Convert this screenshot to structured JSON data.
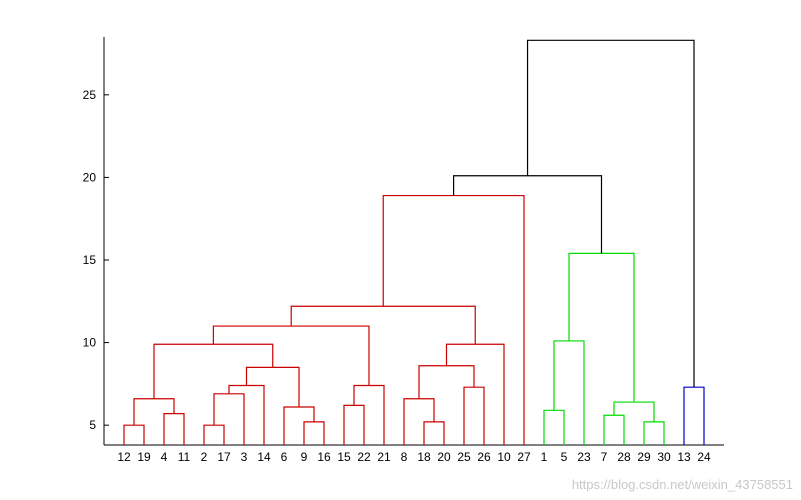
{
  "chart_data": {
    "type": "dendrogram",
    "leaf_order": [
      "12",
      "19",
      "4",
      "11",
      "2",
      "17",
      "3",
      "14",
      "6",
      "9",
      "16",
      "15",
      "22",
      "21",
      "8",
      "18",
      "20",
      "25",
      "26",
      "10",
      "27",
      "1",
      "5",
      "23",
      "7",
      "28",
      "29",
      "30",
      "13",
      "24"
    ],
    "ylim": [
      3.8,
      28.5
    ],
    "yticks": [
      5,
      10,
      15,
      20,
      25
    ],
    "colors": {
      "cluster1": "#cc0000",
      "cluster2": "#00dd00",
      "cluster3": "#0000cc",
      "root": "#000000"
    },
    "merges": [
      {
        "left": "12",
        "right": "19",
        "height": 5.0,
        "color": "cluster1"
      },
      {
        "left": "4",
        "right": "11",
        "height": 5.7,
        "color": "cluster1"
      },
      {
        "left": "n0",
        "right": "n1",
        "height": 6.6,
        "color": "cluster1"
      },
      {
        "left": "2",
        "right": "17",
        "height": 5.0,
        "color": "cluster1"
      },
      {
        "left": "n3",
        "right": "3",
        "height": 6.9,
        "color": "cluster1"
      },
      {
        "left": "n4",
        "right": "14",
        "height": 7.4,
        "color": "cluster1"
      },
      {
        "left": "9",
        "right": "16",
        "height": 5.2,
        "color": "cluster1"
      },
      {
        "left": "6",
        "right": "n6",
        "height": 6.1,
        "color": "cluster1"
      },
      {
        "left": "n5",
        "right": "n7",
        "height": 8.5,
        "color": "cluster1"
      },
      {
        "left": "n2",
        "right": "n8",
        "height": 9.9,
        "color": "cluster1"
      },
      {
        "left": "15",
        "right": "22",
        "height": 6.2,
        "color": "cluster1"
      },
      {
        "left": "n10",
        "right": "21",
        "height": 7.4,
        "color": "cluster1"
      },
      {
        "left": "n9",
        "right": "n11",
        "height": 11.0,
        "color": "cluster1"
      },
      {
        "left": "18",
        "right": "20",
        "height": 5.2,
        "color": "cluster1"
      },
      {
        "left": "8",
        "right": "n13",
        "height": 6.6,
        "color": "cluster1"
      },
      {
        "left": "25",
        "right": "26",
        "height": 7.3,
        "color": "cluster1"
      },
      {
        "left": "n14",
        "right": "n15",
        "height": 8.6,
        "color": "cluster1"
      },
      {
        "left": "n16",
        "right": "10",
        "height": 9.9,
        "color": "cluster1"
      },
      {
        "left": "n12",
        "right": "n17",
        "height": 12.2,
        "color": "cluster1"
      },
      {
        "left": "n18",
        "right": "27",
        "height": 18.9,
        "color": "cluster1"
      },
      {
        "left": "1",
        "right": "5",
        "height": 5.9,
        "color": "cluster2"
      },
      {
        "left": "n20",
        "right": "23",
        "height": 10.1,
        "color": "cluster2"
      },
      {
        "left": "7",
        "right": "28",
        "height": 5.6,
        "color": "cluster2"
      },
      {
        "left": "29",
        "right": "30",
        "height": 5.2,
        "color": "cluster2"
      },
      {
        "left": "n22",
        "right": "n23",
        "height": 6.4,
        "color": "cluster2"
      },
      {
        "left": "n21",
        "right": "n24",
        "height": 15.4,
        "color": "cluster2"
      },
      {
        "left": "n19",
        "right": "n25",
        "height": 20.1,
        "color": "root"
      },
      {
        "left": "13",
        "right": "24",
        "height": 7.3,
        "color": "cluster3"
      },
      {
        "left": "n26",
        "right": "n27",
        "height": 28.3,
        "color": "root"
      }
    ]
  },
  "watermark": "https://blog.csdn.net/weixin_43758551"
}
